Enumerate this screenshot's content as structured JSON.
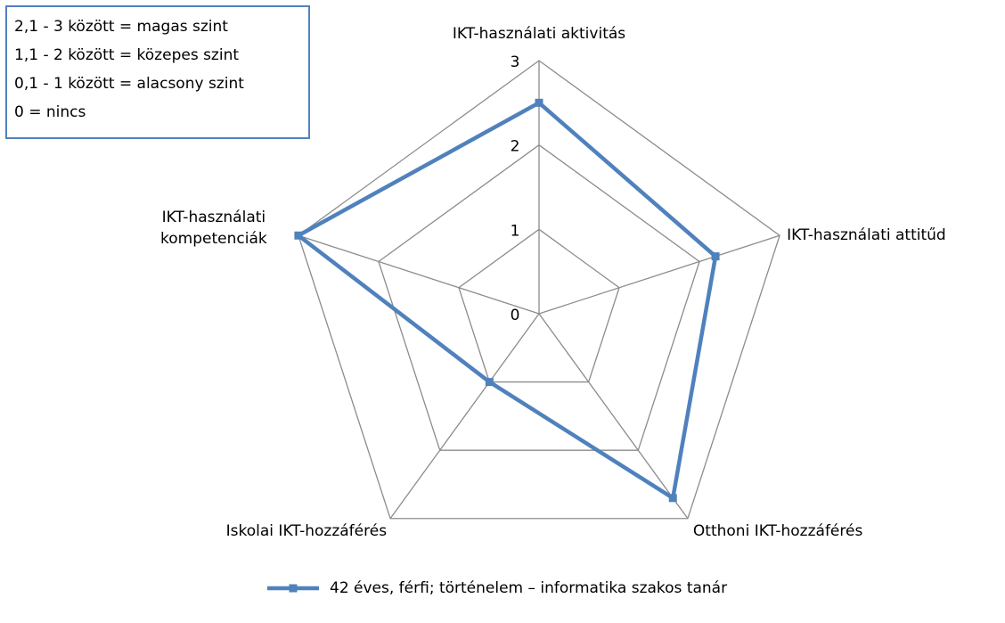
{
  "chart_data": {
    "type": "radar",
    "annotation": [
      "2,1 - 3 között = magas szint",
      "1,1 - 2 között = közepes szint",
      "0,1 - 1 között = alacsony szint",
      "0 = nincs"
    ],
    "categories": [
      "IKT-használati aktivitás",
      "IKT-használati attitűd",
      "Otthoni IKT-hozzáférés",
      "Iskolai IKT-hozzáférés",
      "IKT-használati kompetenciák"
    ],
    "series": [
      {
        "name": "42 éves,  férfi;  történelem – informatika szakos tanár",
        "color": "#4f81bd",
        "values": [
          2.5,
          2.2,
          2.7,
          1.0,
          3
        ]
      }
    ],
    "ylim": [
      0,
      3
    ],
    "yticks": [
      0,
      1,
      2,
      3
    ],
    "grid": true,
    "legend": "bottom"
  }
}
